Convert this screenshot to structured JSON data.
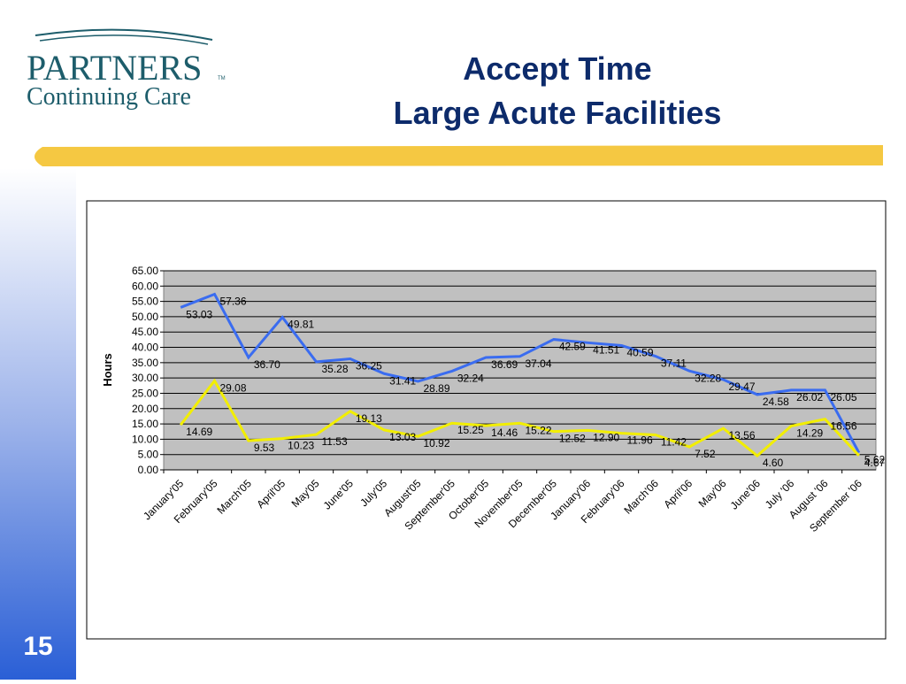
{
  "logo": {
    "name": "PARTNERS",
    "tm": "TM",
    "tagline": "Continuing Care"
  },
  "slide_number": "15",
  "chart_data": {
    "type": "line",
    "title": "Accept Time",
    "subtitle": "Large Acute Facilities",
    "y_label": "Hours",
    "categories": [
      "January'05",
      "February'05",
      "March'05",
      "April'05",
      "May'05",
      "June'05",
      "July'05",
      "August'05",
      "September'05",
      "October'05",
      "November'05",
      "December'05",
      "January'06",
      "February'06",
      "March'06",
      "April'06",
      "May'06",
      "June'06",
      "July '06",
      "August '06",
      "September '06"
    ],
    "series": [
      {
        "color": "#3a6cf0",
        "values": [
          53.03,
          57.36,
          36.7,
          49.81,
          35.28,
          36.25,
          31.41,
          28.89,
          32.24,
          36.69,
          37.04,
          42.59,
          41.51,
          40.59,
          37.11,
          32.28,
          29.47,
          24.58,
          26.02,
          26.05,
          5.62
        ],
        "value_labels": [
          "53.03",
          "57.36",
          "36.70",
          "49.81",
          "35.28",
          "36.25",
          "31.41",
          "28.89",
          "32.24",
          "36.69",
          "37.04",
          "42.59",
          "41.51",
          "40.59",
          "37.11",
          "32.28",
          "29.47",
          "24.58",
          "26.02",
          "26.05",
          "5.62"
        ]
      },
      {
        "color": "#f2ee00",
        "values": [
          14.69,
          29.08,
          9.53,
          10.23,
          11.53,
          19.13,
          13.03,
          10.92,
          15.25,
          14.46,
          15.22,
          12.52,
          12.9,
          11.96,
          11.42,
          7.52,
          13.56,
          4.6,
          14.29,
          16.56,
          4.67
        ],
        "value_labels": [
          "14.69",
          "29.08",
          "9.53",
          "10.23",
          "11.53",
          "19.13",
          "13.03",
          "10.92",
          "15.25",
          "14.46",
          "15.22",
          "12.52",
          "12.90",
          "11.96",
          "11.42",
          "7.52",
          "13.56",
          "4.60",
          "14.29",
          "16.56",
          "4.67"
        ]
      }
    ],
    "ylim": [
      0,
      65
    ],
    "yticks": [
      {
        "value": 0,
        "label": "0.00"
      },
      {
        "value": 5,
        "label": "5.00"
      },
      {
        "value": 10,
        "label": "10.00"
      },
      {
        "value": 15,
        "label": "15.00"
      },
      {
        "value": 20,
        "label": "20.00"
      },
      {
        "value": 25,
        "label": "25.00"
      },
      {
        "value": 30,
        "label": "30.00"
      },
      {
        "value": 35,
        "label": "35.00"
      },
      {
        "value": 40,
        "label": "40.00"
      },
      {
        "value": 45,
        "label": "45.00"
      },
      {
        "value": 50,
        "label": "50.00"
      },
      {
        "value": 55,
        "label": "55.00"
      },
      {
        "value": 60,
        "label": "60.00"
      },
      {
        "value": 65,
        "label": "65.00"
      }
    ],
    "grid": true,
    "plot_background": "#c0c0c0"
  }
}
